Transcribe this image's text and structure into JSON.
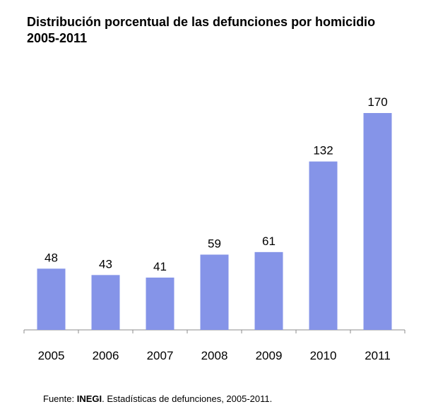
{
  "chart_data": {
    "type": "bar",
    "title": "Distribución porcentual de las defunciones por homicidio",
    "subtitle": "2005-2011",
    "categories": [
      "2005",
      "2006",
      "2007",
      "2008",
      "2009",
      "2010",
      "2011"
    ],
    "values": [
      48,
      43,
      41,
      59,
      61,
      132,
      170
    ],
    "data_labels": [
      "48",
      "43",
      "41",
      "59",
      "61",
      "132",
      "170"
    ],
    "xlabel": "",
    "ylabel": "",
    "ylim": [
      0,
      180
    ],
    "grid": false,
    "legend": "none",
    "bar_color": "#8594E8"
  },
  "source": {
    "prefix": "Fuente: ",
    "org": "INEGI",
    "rest": ". Estadísticas de defunciones, 2005-2011."
  }
}
